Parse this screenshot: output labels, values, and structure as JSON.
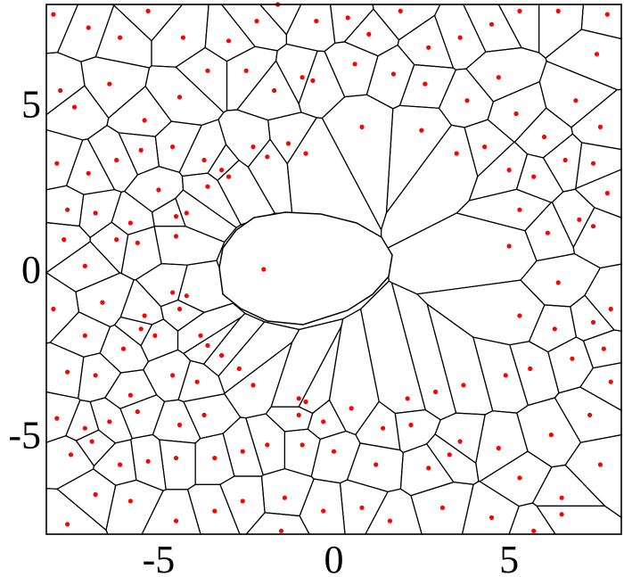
{
  "chart_data": {
    "type": "scatter",
    "title": "",
    "xlabel": "",
    "ylabel": "",
    "xlim": [
      -8.2,
      8.2
    ],
    "ylim": [
      -8.0,
      8.0
    ],
    "xticks": [
      -5,
      0,
      5
    ],
    "yticks": [
      -5,
      0,
      5
    ],
    "xtick_labels": [
      "-5",
      "0",
      "5"
    ],
    "ytick_labels": [
      "-5",
      "0",
      "5"
    ],
    "grid": false,
    "point_color": "#ff0000",
    "edge_color": "#000000",
    "series": [
      {
        "points": [
          [
            -8.0,
            7.7
          ],
          [
            -7.0,
            7.3
          ],
          [
            -6.1,
            7.0
          ],
          [
            -5.3,
            7.8
          ],
          [
            -4.3,
            7.0
          ],
          [
            -3.0,
            6.9
          ],
          [
            -2.2,
            7.5
          ],
          [
            -1.6,
            8.0
          ],
          [
            -0.5,
            7.5
          ],
          [
            0.4,
            7.6
          ],
          [
            1.0,
            7.1
          ],
          [
            1.9,
            7.8
          ],
          [
            2.7,
            6.7
          ],
          [
            3.6,
            7.0
          ],
          [
            4.5,
            7.4
          ],
          [
            5.3,
            7.8
          ],
          [
            6.4,
            7.8
          ],
          [
            7.5,
            6.5
          ],
          [
            7.8,
            7.7
          ],
          [
            -7.8,
            5.4
          ],
          [
            -7.4,
            4.9
          ],
          [
            -6.4,
            5.6
          ],
          [
            -5.4,
            4.5
          ],
          [
            -4.4,
            5.2
          ],
          [
            -3.6,
            6.0
          ],
          [
            -2.5,
            6.0
          ],
          [
            -1.7,
            5.4
          ],
          [
            -0.9,
            5.8
          ],
          [
            -0.6,
            5.7
          ],
          [
            0.6,
            6.2
          ],
          [
            1.7,
            5.9
          ],
          [
            2.6,
            5.6
          ],
          [
            3.8,
            5.1
          ],
          [
            4.7,
            5.8
          ],
          [
            5.2,
            4.7
          ],
          [
            6.0,
            4.0
          ],
          [
            6.9,
            5.1
          ],
          [
            7.6,
            4.3
          ],
          [
            -7.9,
            3.2
          ],
          [
            -7.0,
            2.9
          ],
          [
            -6.2,
            3.3
          ],
          [
            -5.5,
            3.6
          ],
          [
            -4.6,
            3.7
          ],
          [
            -3.7,
            3.3
          ],
          [
            -3.2,
            3.0
          ],
          [
            -2.3,
            3.7
          ],
          [
            -1.9,
            3.4
          ],
          [
            -1.3,
            3.8
          ],
          [
            -0.8,
            3.5
          ],
          [
            0.8,
            4.3
          ],
          [
            2.5,
            4.2
          ],
          [
            3.5,
            3.5
          ],
          [
            4.3,
            3.7
          ],
          [
            5.0,
            3.0
          ],
          [
            5.7,
            2.8
          ],
          [
            6.6,
            3.3
          ],
          [
            7.4,
            3.2
          ],
          [
            7.8,
            2.3
          ],
          [
            -7.6,
            1.8
          ],
          [
            -6.8,
            1.7
          ],
          [
            -5.8,
            1.4
          ],
          [
            -5.0,
            2.4
          ],
          [
            -4.5,
            1.6
          ],
          [
            -4.2,
            1.7
          ],
          [
            -3.6,
            2.5
          ],
          [
            -3.0,
            2.8
          ],
          [
            -7.7,
            0.9
          ],
          [
            -7.1,
            0.1
          ],
          [
            -6.2,
            0.9
          ],
          [
            -5.6,
            0.8
          ],
          [
            -4.5,
            1.0
          ],
          [
            -2.0,
            0.0
          ],
          [
            5.3,
            1.8
          ],
          [
            6.1,
            1.1
          ],
          [
            7.0,
            1.5
          ],
          [
            7.4,
            1.3
          ],
          [
            5.0,
            0.7
          ],
          [
            6.4,
            -0.4
          ],
          [
            -8.0,
            -1.2
          ],
          [
            -6.6,
            -1.0
          ],
          [
            -5.4,
            -1.4
          ],
          [
            -4.4,
            -1.2
          ],
          [
            -4.2,
            -0.8
          ],
          [
            -3.8,
            -2.0
          ],
          [
            -3.6,
            -2.3
          ],
          [
            -4.6,
            -0.7
          ],
          [
            -7.1,
            -2.0
          ],
          [
            -6.0,
            -2.4
          ],
          [
            -5.1,
            -2.0
          ],
          [
            -5.5,
            -1.8
          ],
          [
            -3.2,
            -2.6
          ],
          [
            -2.7,
            -3.0
          ],
          [
            -2.3,
            -3.5
          ],
          [
            5.3,
            -1.4
          ],
          [
            6.3,
            -1.8
          ],
          [
            7.4,
            -1.6
          ],
          [
            7.9,
            -1.2
          ],
          [
            -7.6,
            -3.1
          ],
          [
            -6.8,
            -3.2
          ],
          [
            -5.8,
            -3.8
          ],
          [
            -4.6,
            -3.2
          ],
          [
            -3.9,
            -3.4
          ],
          [
            -1.0,
            -3.9
          ],
          [
            -0.8,
            -4.0
          ],
          [
            0.5,
            -4.2
          ],
          [
            2.1,
            -3.9
          ],
          [
            2.9,
            -3.7
          ],
          [
            3.7,
            -3.5
          ],
          [
            4.9,
            -3.2
          ],
          [
            5.6,
            -3.0
          ],
          [
            6.8,
            -2.7
          ],
          [
            7.7,
            -2.4
          ],
          [
            7.9,
            -3.4
          ],
          [
            -7.9,
            -4.5
          ],
          [
            -7.1,
            -4.8
          ],
          [
            -6.4,
            -4.6
          ],
          [
            -5.6,
            -4.3
          ],
          [
            -4.4,
            -4.7
          ],
          [
            -3.7,
            -4.4
          ],
          [
            -1.0,
            -4.4
          ],
          [
            -0.3,
            -4.6
          ],
          [
            1.4,
            -4.8
          ],
          [
            2.2,
            -4.7
          ],
          [
            3.6,
            -5.2
          ],
          [
            4.7,
            -5.4
          ],
          [
            6.2,
            -5.0
          ],
          [
            7.3,
            -4.4
          ],
          [
            -7.5,
            -5.6
          ],
          [
            -6.9,
            -5.2
          ],
          [
            -6.1,
            -5.9
          ],
          [
            -5.3,
            -5.8
          ],
          [
            -4.5,
            -5.7
          ],
          [
            -3.4,
            -5.7
          ],
          [
            -2.6,
            -5.5
          ],
          [
            -1.9,
            -5.3
          ],
          [
            -0.9,
            -5.3
          ],
          [
            0.0,
            -5.5
          ],
          [
            1.2,
            -5.9
          ],
          [
            2.7,
            -6.0
          ],
          [
            3.3,
            -5.6
          ],
          [
            5.3,
            -6.3
          ],
          [
            6.5,
            -6.9
          ],
          [
            7.6,
            -5.9
          ],
          [
            -7.6,
            -7.7
          ],
          [
            -6.8,
            -6.8
          ],
          [
            -5.8,
            -7.0
          ],
          [
            -4.5,
            -7.6
          ],
          [
            -3.4,
            -7.3
          ],
          [
            -2.6,
            -7.0
          ],
          [
            -1.4,
            -6.9
          ],
          [
            -0.3,
            -7.3
          ],
          [
            0.8,
            -7.2
          ],
          [
            1.6,
            -7.6
          ],
          [
            3.1,
            -7.2
          ],
          [
            4.5,
            -7.5
          ],
          [
            5.7,
            -7.9
          ],
          [
            6.5,
            -7.4
          ],
          [
            -1.5,
            -7.9
          ]
        ]
      }
    ]
  }
}
